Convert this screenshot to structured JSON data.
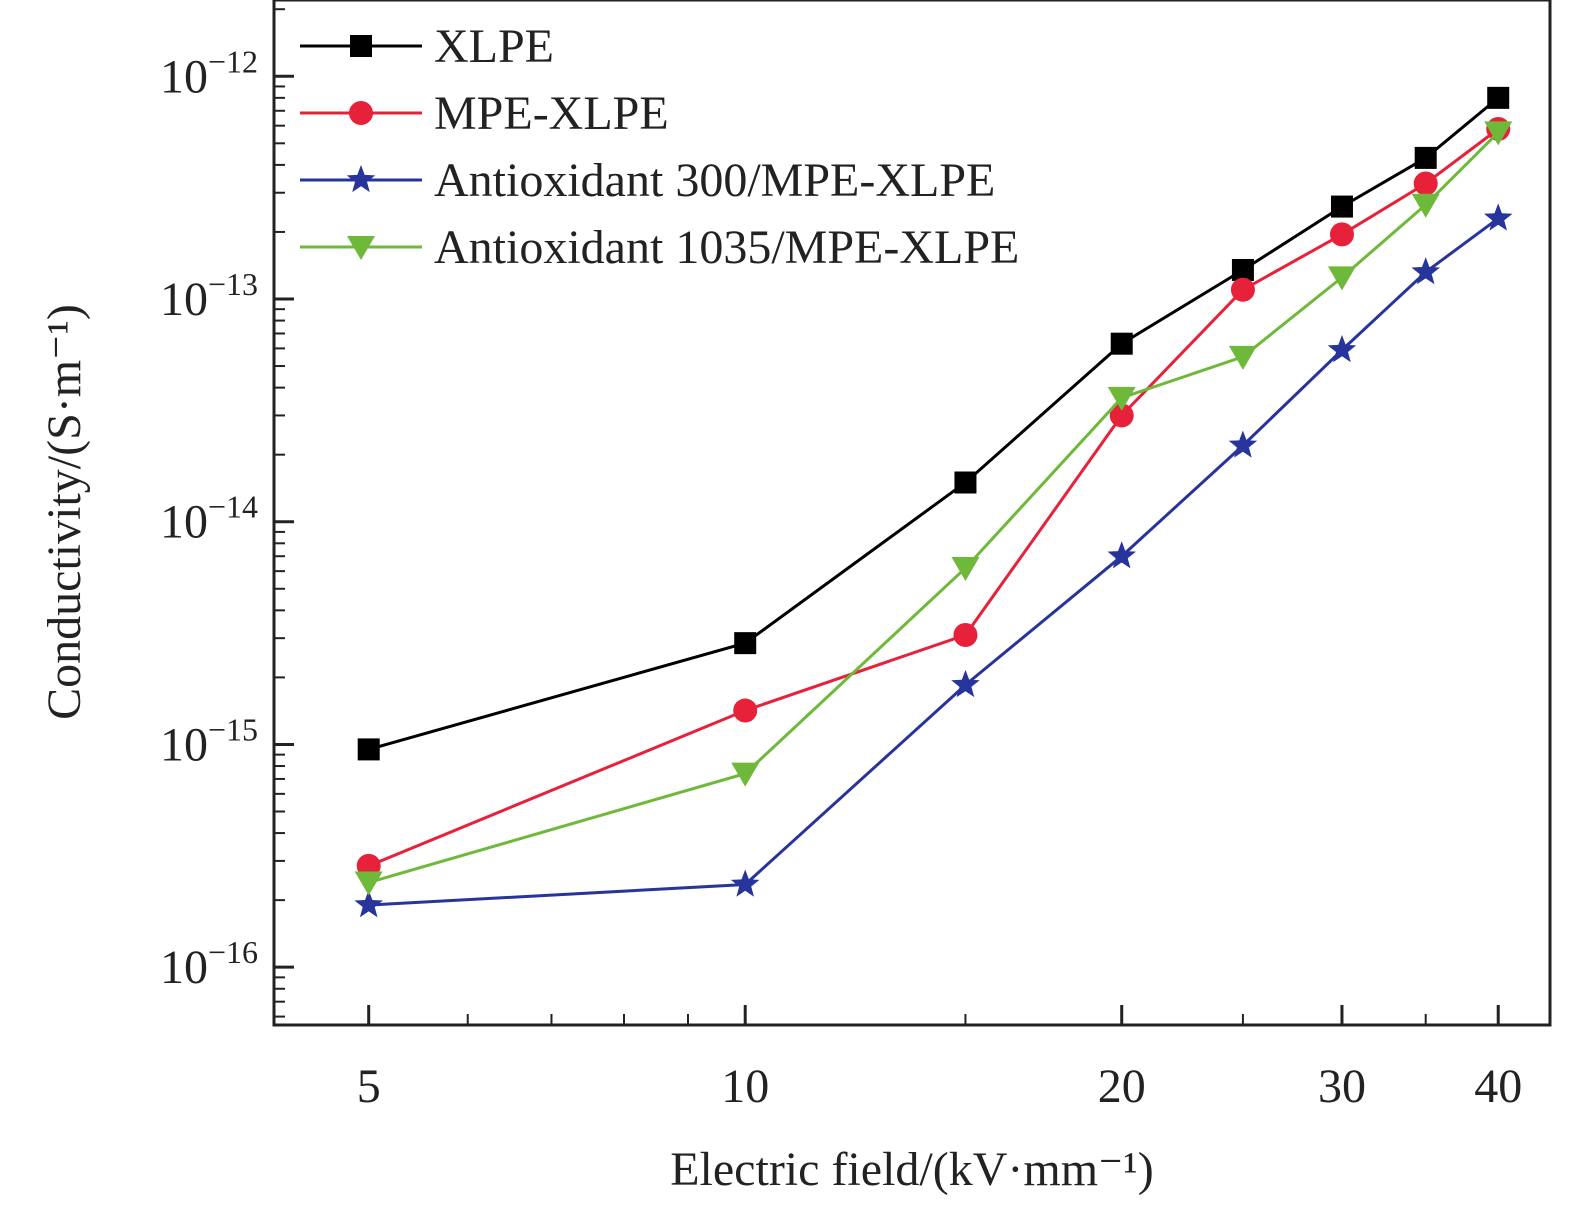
{
  "chart_data": {
    "type": "line",
    "xscale": "log",
    "yscale": "log",
    "xlim": [
      4.2,
      44
    ],
    "ylim": [
      5.5e-17,
      2.2e-12
    ],
    "xlabel": "Electric field/(kV·mm⁻¹)",
    "ylabel": "Conductivity/(S·m⁻¹)",
    "x_ticks": [
      5,
      10,
      20,
      30,
      40
    ],
    "x_tick_labels": [
      "5",
      "10",
      "20",
      "30",
      "40"
    ],
    "y_ticks": [
      1e-16,
      1e-15,
      1e-14,
      1e-13,
      1e-12
    ],
    "y_tick_labels": [
      {
        "base": "10",
        "exp": "−16"
      },
      {
        "base": "10",
        "exp": "−15"
      },
      {
        "base": "10",
        "exp": "−14"
      },
      {
        "base": "10",
        "exp": "−13"
      },
      {
        "base": "10",
        "exp": "−12"
      }
    ],
    "x": [
      5,
      10,
      15,
      20,
      25,
      30,
      35,
      40
    ],
    "legend_position": "top-left",
    "series": [
      {
        "name": "XLPE",
        "color": "#000000",
        "marker": "square",
        "values": [
          9.5e-16,
          2.85e-15,
          1.5e-14,
          6.3e-14,
          1.35e-13,
          2.6e-13,
          4.3e-13,
          8e-13
        ]
      },
      {
        "name": "MPE-XLPE",
        "color": "#e8213a",
        "marker": "circle",
        "values": [
          2.85e-16,
          1.42e-15,
          3.1e-15,
          3e-14,
          1.1e-13,
          1.95e-13,
          3.3e-13,
          5.8e-13
        ]
      },
      {
        "name": "Antioxidant 300/MPE-XLPE",
        "color": "#27349b",
        "marker": "star",
        "values": [
          1.9e-16,
          2.35e-16,
          1.85e-15,
          7e-15,
          2.2e-14,
          5.9e-14,
          1.32e-13,
          2.3e-13
        ]
      },
      {
        "name": "Antioxidant 1035/MPE-XLPE",
        "color": "#6fb93a",
        "marker": "triangle-down",
        "values": [
          2.4e-16,
          7.4e-16,
          6.2e-15,
          3.6e-14,
          5.5e-14,
          1.25e-13,
          2.65e-13,
          5.6e-13
        ]
      }
    ]
  }
}
